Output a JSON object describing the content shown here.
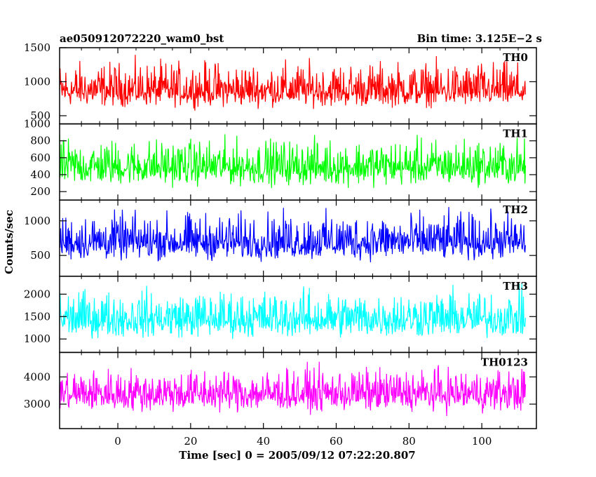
{
  "chart_data": {
    "type": "line",
    "title_left": "ae050912072220_wam0_bst",
    "title_right": "Bin time: 3.125E−2 s",
    "xlabel": "Time [sec] 0 = 2005/09/12 07:22:20.807",
    "ylabel": "Counts/sec",
    "xlim": [
      -16,
      115
    ],
    "x_ticks": [
      0,
      20,
      40,
      60,
      80,
      100
    ],
    "x_range": [
      -16,
      112
    ],
    "panels": [
      {
        "name": "TH0",
        "color": "#ff0000",
        "ylim": [
          380,
          1500
        ],
        "y_ticks": [
          500,
          1000,
          1500
        ],
        "mean": 850,
        "low": 560,
        "high": 1460
      },
      {
        "name": "TH1",
        "color": "#00ff00",
        "ylim": [
          100,
          1000
        ],
        "y_ticks": [
          200,
          400,
          600,
          800,
          1000
        ],
        "mean": 480,
        "low": 200,
        "high": 950
      },
      {
        "name": "TH2",
        "color": "#0000ff",
        "ylim": [
          200,
          1300
        ],
        "y_ticks": [
          500,
          1000
        ],
        "mean": 680,
        "low": 340,
        "high": 1280
      },
      {
        "name": "TH3",
        "color": "#00ffff",
        "ylim": [
          700,
          2400
        ],
        "y_ticks": [
          1000,
          1500,
          2000
        ],
        "mean": 1420,
        "low": 900,
        "high": 2350
      },
      {
        "name": "TH0123",
        "color": "#ff00ff",
        "ylim": [
          2100,
          4900
        ],
        "y_ticks": [
          3000,
          4000
        ],
        "mean": 3350,
        "low": 2500,
        "high": 4700
      }
    ]
  }
}
